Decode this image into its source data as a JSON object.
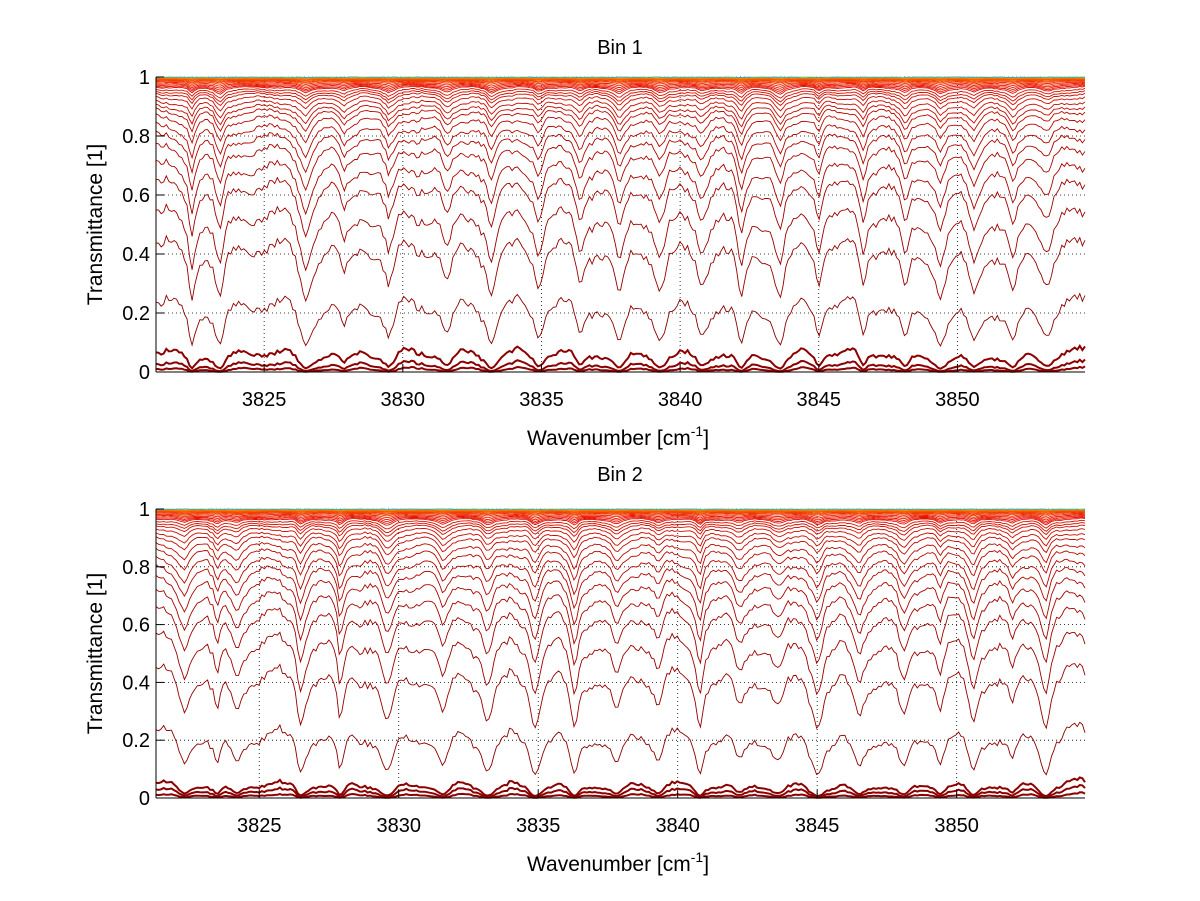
{
  "chart_data": [
    {
      "type": "line",
      "title": "Bin 1",
      "xlabel": "Wavenumber [cm",
      "xlabel_sup": "-1",
      "xlabel_end": "]",
      "ylabel": "Transmittance [1]",
      "xlim": [
        3821.1,
        3854.6
      ],
      "ylim": [
        0,
        1
      ],
      "xticks": [
        "3825",
        "3830",
        "3835",
        "3840",
        "3845",
        "3850"
      ],
      "xtick_values": [
        3825,
        3830,
        3835,
        3840,
        3845,
        3850
      ],
      "yticks": [
        "0",
        "0.2",
        "0.4",
        "0.6",
        "0.8",
        "1"
      ],
      "ytick_values": [
        0,
        0.2,
        0.4,
        0.6,
        0.8,
        1
      ],
      "grid": true,
      "series_count": 40,
      "series_baselines": [
        0.003,
        0.01,
        0.03,
        0.15,
        0.33,
        0.44,
        0.55,
        0.62,
        0.69,
        0.74,
        0.78,
        0.82,
        0.85,
        0.87,
        0.89,
        0.91,
        0.925,
        0.935,
        0.945,
        0.955,
        0.96,
        0.965,
        0.97,
        0.975,
        0.98,
        0.984,
        0.987,
        0.99,
        0.992,
        0.994,
        0.995,
        0.996,
        0.997,
        0.998,
        0.998,
        0.999,
        0.999,
        0.999,
        1.0,
        1.0
      ],
      "absorption_lines": [
        3822.4,
        3823.4,
        3826.5,
        3827.9,
        3829.5,
        3831.6,
        3833.2,
        3834.9,
        3836.4,
        3837.8,
        3839.3,
        3840.8,
        3842.2,
        3843.6,
        3845.0,
        3846.6,
        3848.1,
        3849.4,
        3850.6,
        3852.0,
        3853.2
      ],
      "colormap": "autumn-to-darkred"
    },
    {
      "type": "line",
      "title": "Bin 2",
      "xlabel": "Wavenumber [cm",
      "xlabel_sup": "-1",
      "xlabel_end": "]",
      "ylabel": "Transmittance [1]",
      "xlim": [
        3821.3,
        3854.6
      ],
      "ylim": [
        0,
        1
      ],
      "xticks": [
        "3825",
        "3830",
        "3835",
        "3840",
        "3845",
        "3850"
      ],
      "xtick_values": [
        3825,
        3830,
        3835,
        3840,
        3845,
        3850
      ],
      "yticks": [
        "0",
        "0.2",
        "0.4",
        "0.6",
        "0.8",
        "1"
      ],
      "ytick_values": [
        0,
        0.2,
        0.4,
        0.6,
        0.8,
        1
      ],
      "grid": true,
      "series_count": 40,
      "series_baselines": [
        0.003,
        0.01,
        0.02,
        0.14,
        0.33,
        0.45,
        0.55,
        0.62,
        0.68,
        0.73,
        0.77,
        0.81,
        0.84,
        0.87,
        0.89,
        0.91,
        0.925,
        0.935,
        0.945,
        0.955,
        0.96,
        0.965,
        0.97,
        0.975,
        0.98,
        0.984,
        0.987,
        0.99,
        0.992,
        0.994,
        0.995,
        0.996,
        0.997,
        0.998,
        0.998,
        0.999,
        0.999,
        0.999,
        1.0,
        1.0
      ],
      "absorption_lines": [
        3822.3,
        3823.5,
        3824.2,
        3826.5,
        3827.9,
        3829.6,
        3831.6,
        3833.2,
        3834.9,
        3836.3,
        3837.8,
        3839.3,
        3840.8,
        3842.2,
        3843.6,
        3845.0,
        3846.5,
        3848.1,
        3849.4,
        3850.6,
        3852.0,
        3853.2
      ],
      "colormap": "autumn-to-darkred"
    }
  ]
}
